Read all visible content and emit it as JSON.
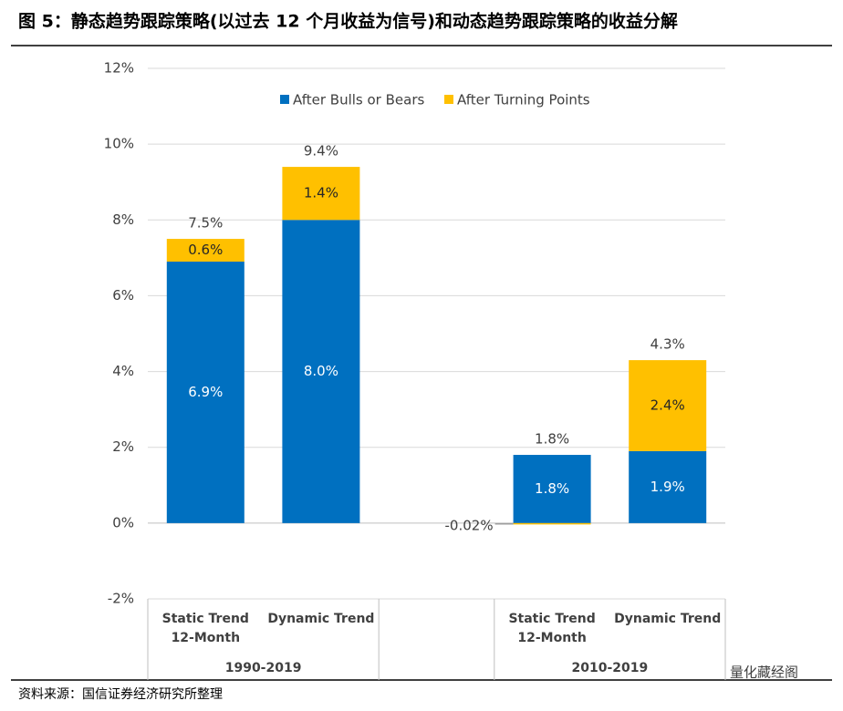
{
  "title": "图 5：静态趋势跟踪策略(以过去 12 个月收益为信号)和动态趋势跟踪策略的收益分解",
  "source": "资料来源：国信证券经济研究所整理",
  "watermark": "量化藏经阁",
  "chart_data": {
    "type": "stacked_bar",
    "categories": [
      [
        "Static Trend",
        "12-Month"
      ],
      [
        "Dynamic Trend"
      ],
      null,
      [
        "Static Trend",
        "12-Month"
      ],
      [
        "Dynamic Trend"
      ]
    ],
    "groups": [
      "1990-2019",
      "2010-2019"
    ],
    "series": [
      {
        "name": "After Bulls or Bears",
        "color": "#0070c0",
        "values": [
          6.9,
          8.0,
          null,
          1.8,
          1.9
        ],
        "value_labels": [
          "6.9%",
          "8.0%",
          null,
          "1.8%",
          "1.9%"
        ]
      },
      {
        "name": "After Turning Points",
        "color": "#ffc000",
        "values": [
          0.6,
          1.4,
          null,
          -0.02,
          2.4
        ],
        "value_labels": [
          "0.6%",
          "1.4%",
          null,
          "-0.02%",
          "2.4%"
        ]
      }
    ],
    "totals": [
      7.5,
      9.4,
      null,
      1.8,
      4.3
    ],
    "total_labels": [
      "7.5%",
      "9.4%",
      null,
      "1.8%",
      "4.3%"
    ],
    "ylim": [
      -2,
      12
    ],
    "yticks": [
      {
        "value": -2,
        "label": "-2%"
      },
      {
        "value": 0,
        "label": "0%"
      },
      {
        "value": 2,
        "label": "2%"
      },
      {
        "value": 4,
        "label": "4%"
      },
      {
        "value": 6,
        "label": "6%"
      },
      {
        "value": 8,
        "label": "8%"
      },
      {
        "value": 10,
        "label": "10%"
      },
      {
        "value": 12,
        "label": "12%"
      }
    ],
    "grid": true,
    "legend": "top"
  }
}
